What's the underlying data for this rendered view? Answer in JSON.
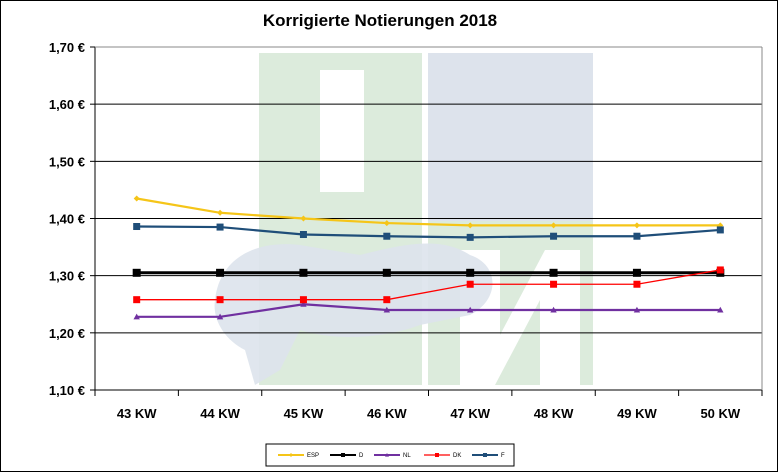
{
  "chart_data": {
    "type": "line",
    "title": "Korrigierte Notierungen 2018",
    "xlabel": "",
    "ylabel": "",
    "categories": [
      "43 KW",
      "44 KW",
      "45 KW",
      "46 KW",
      "47 KW",
      "48 KW",
      "49 KW",
      "50 KW"
    ],
    "ylim": [
      1.1,
      1.7
    ],
    "yticks": [
      "1,10 €",
      "1,20 €",
      "1,30 €",
      "1,40 €",
      "1,50 €",
      "1,60 €",
      "1,70 €"
    ],
    "ytick_values": [
      1.1,
      1.2,
      1.3,
      1.4,
      1.5,
      1.6,
      1.7
    ],
    "grid": true,
    "legend_position": "bottom",
    "series": [
      {
        "name": "ESP",
        "color": "#F5C518",
        "marker": "diamond",
        "values": [
          1.435,
          1.41,
          1.4,
          1.392,
          1.388,
          1.388,
          1.388,
          1.388
        ]
      },
      {
        "name": "D",
        "color": "#000000",
        "marker": "square",
        "values": [
          1.305,
          1.305,
          1.305,
          1.305,
          1.305,
          1.305,
          1.305,
          1.305
        ]
      },
      {
        "name": "NL",
        "color": "#7030A0",
        "marker": "triangle",
        "values": [
          1.228,
          1.228,
          1.25,
          1.24,
          1.24,
          1.24,
          1.24,
          1.24
        ]
      },
      {
        "name": "DK",
        "color": "#FF0000",
        "marker": "square",
        "values": [
          1.258,
          1.258,
          1.258,
          1.258,
          1.285,
          1.285,
          1.285,
          1.31
        ]
      },
      {
        "name": "F",
        "color": "#1F4E79",
        "marker": "square",
        "values": [
          1.386,
          1.385,
          1.372,
          1.369,
          1.367,
          1.369,
          1.369,
          1.38
        ]
      }
    ]
  },
  "watermark": {
    "text": "ISN",
    "colors": {
      "green": "#DCEBDC",
      "blue": "#DDE3EC"
    }
  }
}
